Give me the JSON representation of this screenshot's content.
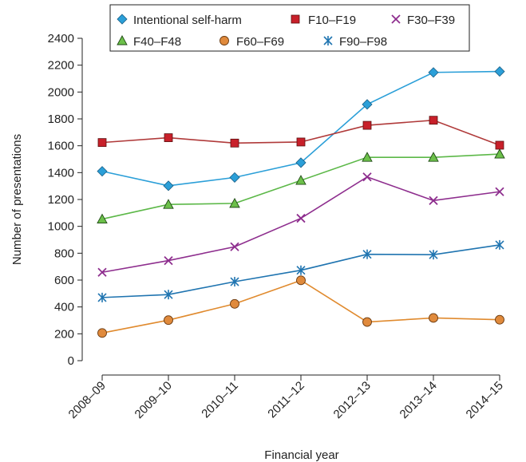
{
  "chart_data": {
    "type": "line",
    "xlabel": "Financial year",
    "ylabel": "Number of presentations",
    "categories": [
      "2008–09",
      "2009–10",
      "2010–11",
      "2011–12",
      "2012–13",
      "2013–14",
      "2014–15"
    ],
    "ylim": [
      0,
      2400
    ],
    "yticks": [
      0,
      200,
      400,
      600,
      800,
      1000,
      1200,
      1400,
      1600,
      1800,
      2000,
      2200,
      2400
    ],
    "grid": false,
    "legend_position": "top",
    "series": [
      {
        "name": "Intentional self-harm",
        "color": "#2b9fd8",
        "marker": "diamond",
        "marker_fill": "#2b9fd8",
        "values": [
          1410,
          1302,
          1364,
          1474,
          1908,
          2146,
          2153
        ]
      },
      {
        "name": "F10–F19",
        "color": "#b03a3a",
        "marker": "square",
        "marker_fill": "#c8202a",
        "values": [
          1624,
          1660,
          1620,
          1628,
          1752,
          1790,
          1604
        ]
      },
      {
        "name": "F30–F39",
        "color": "#8e2e8e",
        "marker": "x",
        "marker_fill": "#8e2e8e",
        "values": [
          658,
          745,
          848,
          1060,
          1368,
          1192,
          1258
        ]
      },
      {
        "name": "F40–F48",
        "color": "#5cb848",
        "marker": "triangle",
        "marker_fill": "#6cc04a",
        "values": [
          1054,
          1163,
          1171,
          1342,
          1514,
          1514,
          1538
        ]
      },
      {
        "name": "F60–F69",
        "color": "#e08a2e",
        "marker": "circle",
        "marker_fill": "#e08a3c",
        "values": [
          206,
          302,
          423,
          598,
          288,
          318,
          305
        ]
      },
      {
        "name": "F90–F98",
        "color": "#1f74b0",
        "marker": "asterisk",
        "marker_fill": "#1f74b0",
        "values": [
          470,
          492,
          588,
          673,
          792,
          789,
          862
        ]
      }
    ]
  }
}
